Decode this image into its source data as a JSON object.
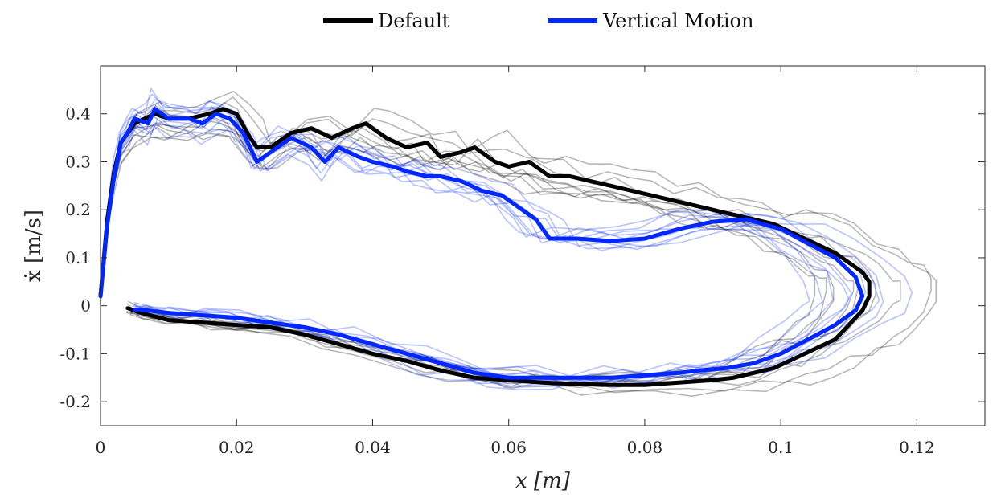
{
  "chart_data": {
    "type": "line",
    "xlabel": "x [m]",
    "ylabel": "ẋ [m/s]",
    "xlim": [
      0,
      0.13
    ],
    "ylim": [
      -0.25,
      0.5
    ],
    "x_ticks": [
      0,
      0.02,
      0.04,
      0.06,
      0.08,
      0.1,
      0.12
    ],
    "x_tick_labels": [
      "0",
      "0.02",
      "0.04",
      "0.06",
      "0.08",
      "0.1",
      "0.12"
    ],
    "y_ticks": [
      -0.2,
      -0.1,
      0,
      0.1,
      0.2,
      0.3,
      0.4
    ],
    "y_tick_labels": [
      "-0.2",
      "-0.1",
      "0",
      "0.1",
      "0.2",
      "0.3",
      "0.4"
    ],
    "grid": false,
    "legend_position": "top-center",
    "series": [
      {
        "name": "Default",
        "color": "#000000",
        "points": [
          [
            0,
            0.02
          ],
          [
            0.001,
            0.18
          ],
          [
            0.002,
            0.28
          ],
          [
            0.003,
            0.34
          ],
          [
            0.005,
            0.38
          ],
          [
            0.008,
            0.4
          ],
          [
            0.01,
            0.39
          ],
          [
            0.013,
            0.39
          ],
          [
            0.016,
            0.4
          ],
          [
            0.018,
            0.41
          ],
          [
            0.02,
            0.4
          ],
          [
            0.022,
            0.35
          ],
          [
            0.023,
            0.33
          ],
          [
            0.025,
            0.33
          ],
          [
            0.028,
            0.36
          ],
          [
            0.031,
            0.37
          ],
          [
            0.034,
            0.35
          ],
          [
            0.037,
            0.37
          ],
          [
            0.039,
            0.38
          ],
          [
            0.042,
            0.35
          ],
          [
            0.045,
            0.33
          ],
          [
            0.048,
            0.34
          ],
          [
            0.05,
            0.31
          ],
          [
            0.053,
            0.32
          ],
          [
            0.055,
            0.33
          ],
          [
            0.058,
            0.3
          ],
          [
            0.06,
            0.29
          ],
          [
            0.063,
            0.3
          ],
          [
            0.066,
            0.27
          ],
          [
            0.069,
            0.27
          ],
          [
            0.072,
            0.26
          ],
          [
            0.075,
            0.25
          ],
          [
            0.078,
            0.24
          ],
          [
            0.081,
            0.23
          ],
          [
            0.084,
            0.22
          ],
          [
            0.087,
            0.21
          ],
          [
            0.09,
            0.2
          ],
          [
            0.093,
            0.19
          ],
          [
            0.096,
            0.18
          ],
          [
            0.099,
            0.17
          ],
          [
            0.102,
            0.15
          ],
          [
            0.105,
            0.13
          ],
          [
            0.108,
            0.11
          ],
          [
            0.11,
            0.09
          ],
          [
            0.112,
            0.07
          ],
          [
            0.113,
            0.05
          ],
          [
            0.113,
            0.02
          ],
          [
            0.112,
            -0.01
          ],
          [
            0.11,
            -0.04
          ],
          [
            0.108,
            -0.07
          ],
          [
            0.105,
            -0.09
          ],
          [
            0.102,
            -0.11
          ],
          [
            0.099,
            -0.13
          ],
          [
            0.096,
            -0.14
          ],
          [
            0.093,
            -0.15
          ],
          [
            0.09,
            -0.155
          ],
          [
            0.085,
            -0.16
          ],
          [
            0.08,
            -0.165
          ],
          [
            0.075,
            -0.165
          ],
          [
            0.07,
            -0.163
          ],
          [
            0.065,
            -0.16
          ],
          [
            0.06,
            -0.155
          ],
          [
            0.055,
            -0.15
          ],
          [
            0.05,
            -0.135
          ],
          [
            0.045,
            -0.115
          ],
          [
            0.04,
            -0.1
          ],
          [
            0.035,
            -0.08
          ],
          [
            0.03,
            -0.06
          ],
          [
            0.025,
            -0.045
          ],
          [
            0.02,
            -0.04
          ],
          [
            0.015,
            -0.035
          ],
          [
            0.01,
            -0.03
          ],
          [
            0.006,
            -0.015
          ],
          [
            0.004,
            -0.005
          ]
        ]
      },
      {
        "name": "Vertical Motion",
        "color": "#0027ff",
        "points": [
          [
            0,
            0.02
          ],
          [
            0.001,
            0.17
          ],
          [
            0.002,
            0.27
          ],
          [
            0.003,
            0.34
          ],
          [
            0.004,
            0.36
          ],
          [
            0.005,
            0.39
          ],
          [
            0.007,
            0.38
          ],
          [
            0.008,
            0.41
          ],
          [
            0.01,
            0.39
          ],
          [
            0.013,
            0.39
          ],
          [
            0.015,
            0.38
          ],
          [
            0.017,
            0.4
          ],
          [
            0.019,
            0.39
          ],
          [
            0.021,
            0.36
          ],
          [
            0.023,
            0.3
          ],
          [
            0.025,
            0.32
          ],
          [
            0.028,
            0.35
          ],
          [
            0.031,
            0.33
          ],
          [
            0.033,
            0.3
          ],
          [
            0.035,
            0.33
          ],
          [
            0.038,
            0.31
          ],
          [
            0.04,
            0.3
          ],
          [
            0.043,
            0.29
          ],
          [
            0.045,
            0.28
          ],
          [
            0.048,
            0.27
          ],
          [
            0.05,
            0.27
          ],
          [
            0.053,
            0.26
          ],
          [
            0.056,
            0.24
          ],
          [
            0.059,
            0.23
          ],
          [
            0.062,
            0.2
          ],
          [
            0.064,
            0.18
          ],
          [
            0.066,
            0.14
          ],
          [
            0.07,
            0.14
          ],
          [
            0.075,
            0.135
          ],
          [
            0.08,
            0.14
          ],
          [
            0.085,
            0.16
          ],
          [
            0.09,
            0.175
          ],
          [
            0.095,
            0.18
          ],
          [
            0.1,
            0.16
          ],
          [
            0.104,
            0.13
          ],
          [
            0.108,
            0.1
          ],
          [
            0.111,
            0.06
          ],
          [
            0.112,
            0.02
          ],
          [
            0.111,
            -0.01
          ],
          [
            0.108,
            -0.04
          ],
          [
            0.104,
            -0.07
          ],
          [
            0.1,
            -0.1
          ],
          [
            0.096,
            -0.12
          ],
          [
            0.092,
            -0.13
          ],
          [
            0.088,
            -0.135
          ],
          [
            0.085,
            -0.14
          ],
          [
            0.08,
            -0.145
          ],
          [
            0.075,
            -0.15
          ],
          [
            0.07,
            -0.15
          ],
          [
            0.065,
            -0.15
          ],
          [
            0.06,
            -0.15
          ],
          [
            0.055,
            -0.14
          ],
          [
            0.05,
            -0.12
          ],
          [
            0.045,
            -0.1
          ],
          [
            0.04,
            -0.08
          ],
          [
            0.035,
            -0.06
          ],
          [
            0.03,
            -0.045
          ],
          [
            0.025,
            -0.035
          ],
          [
            0.02,
            -0.025
          ],
          [
            0.015,
            -0.02
          ],
          [
            0.01,
            -0.015
          ],
          [
            0.007,
            -0.01
          ],
          [
            0.005,
            -0.008
          ]
        ]
      }
    ]
  }
}
